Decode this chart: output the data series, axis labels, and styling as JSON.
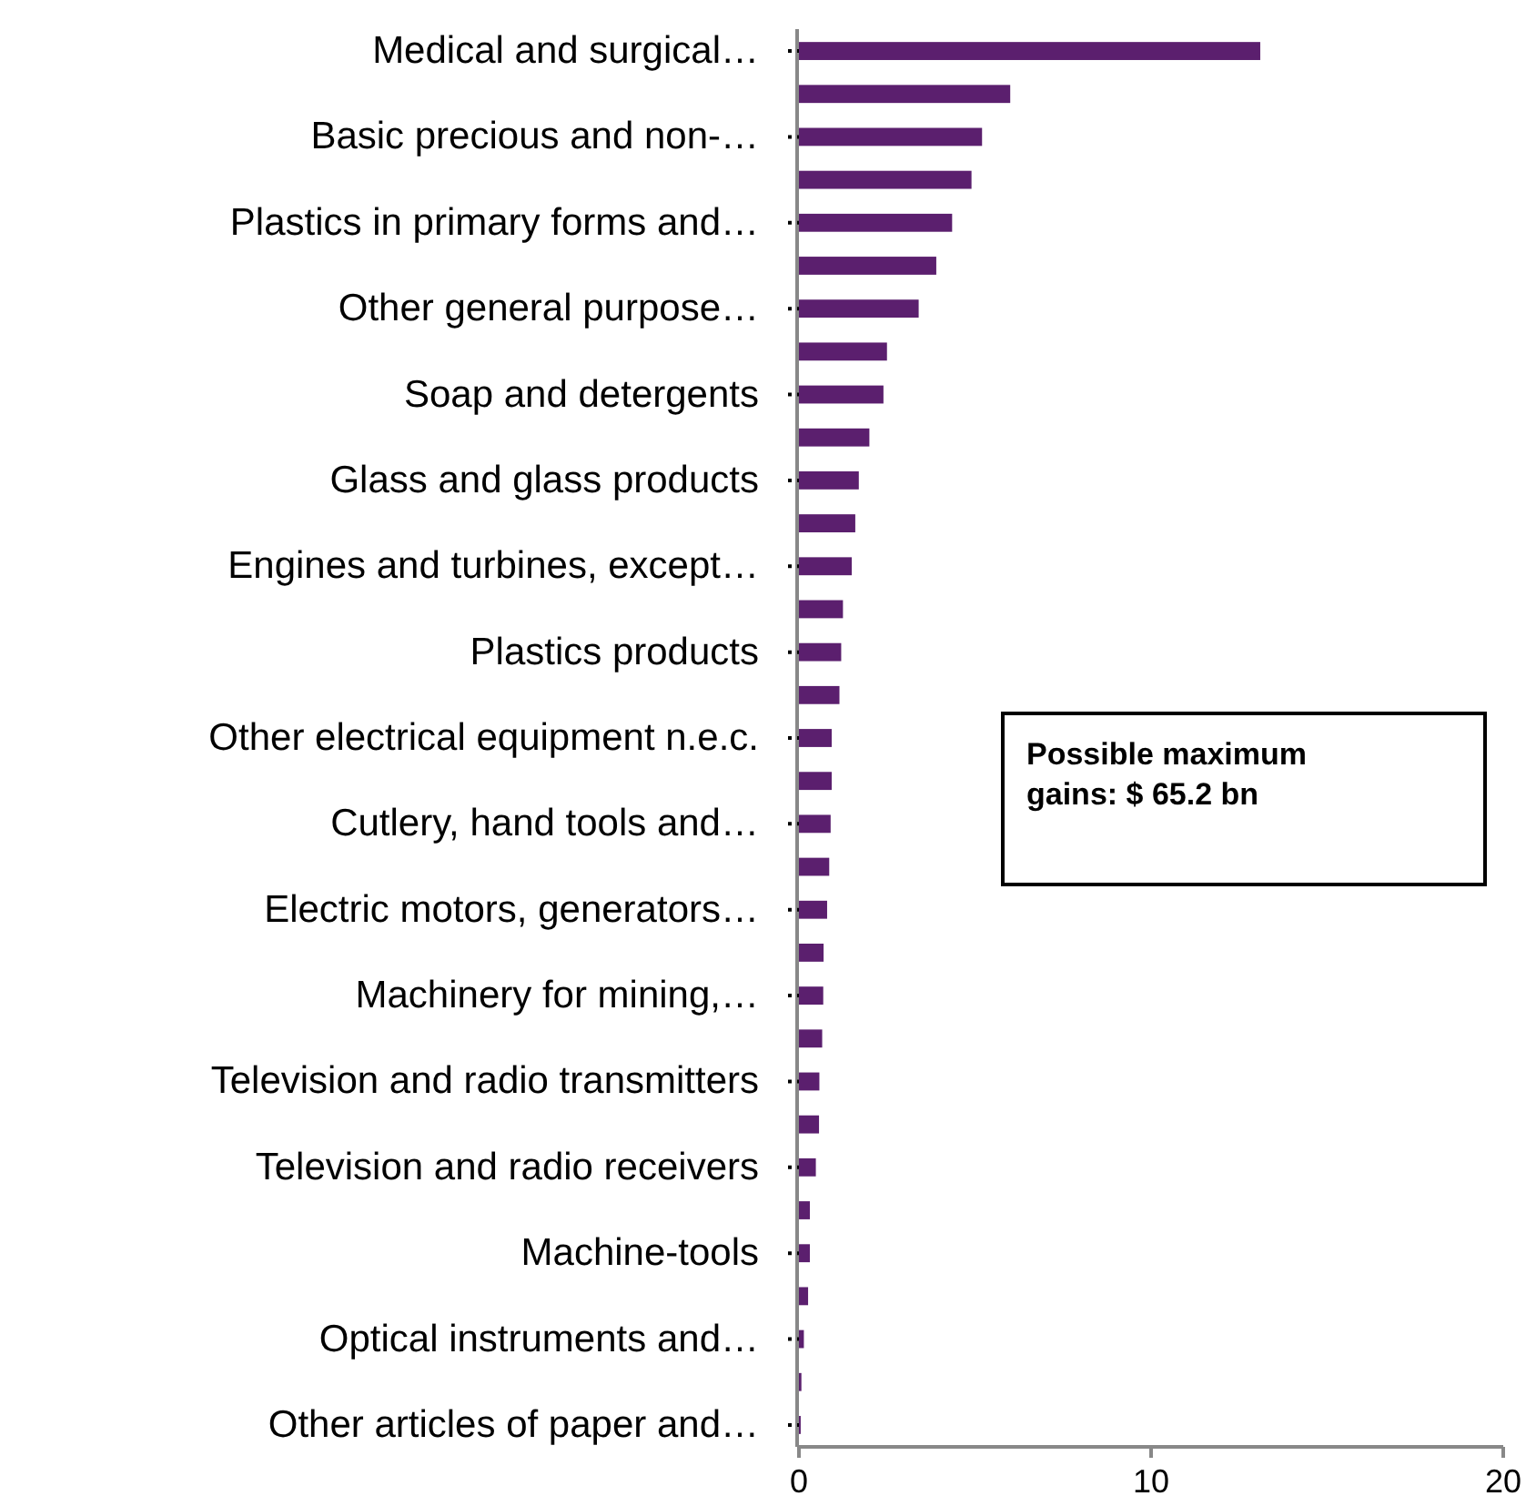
{
  "chart_data": {
    "type": "bar",
    "orientation": "horizontal",
    "categories": [
      "Medical and surgical…",
      null,
      "Basic precious and non-…",
      null,
      "Plastics in primary forms and…",
      null,
      "Other general purpose…",
      null,
      "Soap and detergents",
      null,
      "Glass and glass products",
      null,
      "Engines and turbines, except…",
      null,
      "Plastics products",
      null,
      "Other electrical equipment n.e.c.",
      null,
      "Cutlery, hand tools and…",
      null,
      "Electric motors, generators…",
      null,
      "Machinery for mining,…",
      null,
      "Television and radio transmitters",
      null,
      "Television and radio receivers",
      null,
      "Machine-tools",
      null,
      "Optical instruments and…",
      null,
      "Other articles of paper and…"
    ],
    "values": [
      13.1,
      6.0,
      5.2,
      4.9,
      4.35,
      3.9,
      3.4,
      2.5,
      2.4,
      2.0,
      1.7,
      1.6,
      1.5,
      1.25,
      1.2,
      1.15,
      0.93,
      0.93,
      0.9,
      0.86,
      0.8,
      0.7,
      0.69,
      0.66,
      0.58,
      0.57,
      0.48,
      0.31,
      0.31,
      0.26,
      0.14,
      0.07,
      0.05
    ],
    "color": "#5b1f6e",
    "xlim": [
      0,
      20
    ],
    "xticks": [
      0,
      10,
      20
    ],
    "annotations": [
      "Possible maximum gains: $ 65.2 bn"
    ]
  }
}
